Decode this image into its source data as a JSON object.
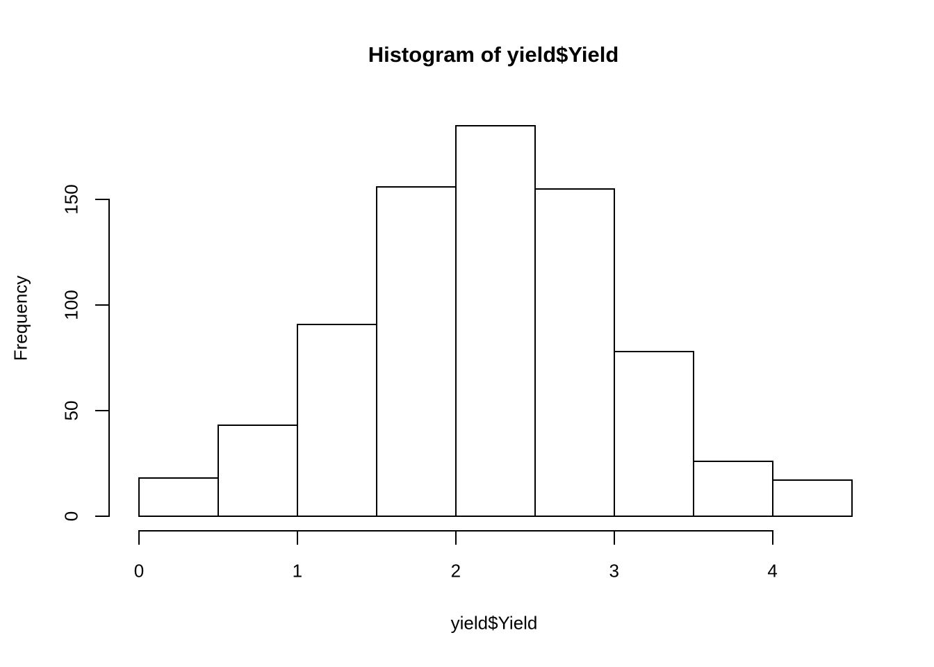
{
  "chart_data": {
    "type": "bar",
    "subtype": "histogram",
    "title": "Histogram of yield$Yield",
    "xlabel": "yield$Yield",
    "ylabel": "Frequency",
    "bin_edges": [
      0,
      0.5,
      1,
      1.5,
      2,
      2.5,
      3,
      3.5,
      4,
      4.5
    ],
    "counts": [
      18,
      43,
      91,
      156,
      185,
      155,
      78,
      26,
      17
    ],
    "x_ticks": [
      0,
      1,
      2,
      3,
      4
    ],
    "y_ticks": [
      0,
      50,
      100,
      150
    ],
    "xlim": [
      0,
      4.5
    ],
    "ylim": [
      0,
      185
    ],
    "grid": false,
    "legend": null,
    "bar_fill_color": "#ffffff",
    "bar_border_color": "#000000",
    "axis_color": "#000000",
    "text_color": "#000000",
    "background_color": "#ffffff"
  }
}
